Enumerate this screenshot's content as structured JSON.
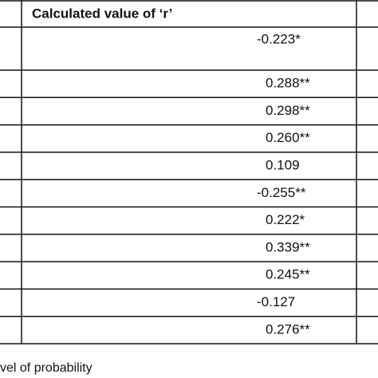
{
  "table": {
    "header": "Calculated value of ‘r’",
    "rows": [
      "-0.223*",
      "0.288**",
      "0.298**",
      "0.260**",
      "0.109",
      "-0.255**",
      "0.222*",
      "0.339**",
      "0.245**",
      "-0.127",
      "0.276**"
    ]
  },
  "footnote": "vel of probability"
}
